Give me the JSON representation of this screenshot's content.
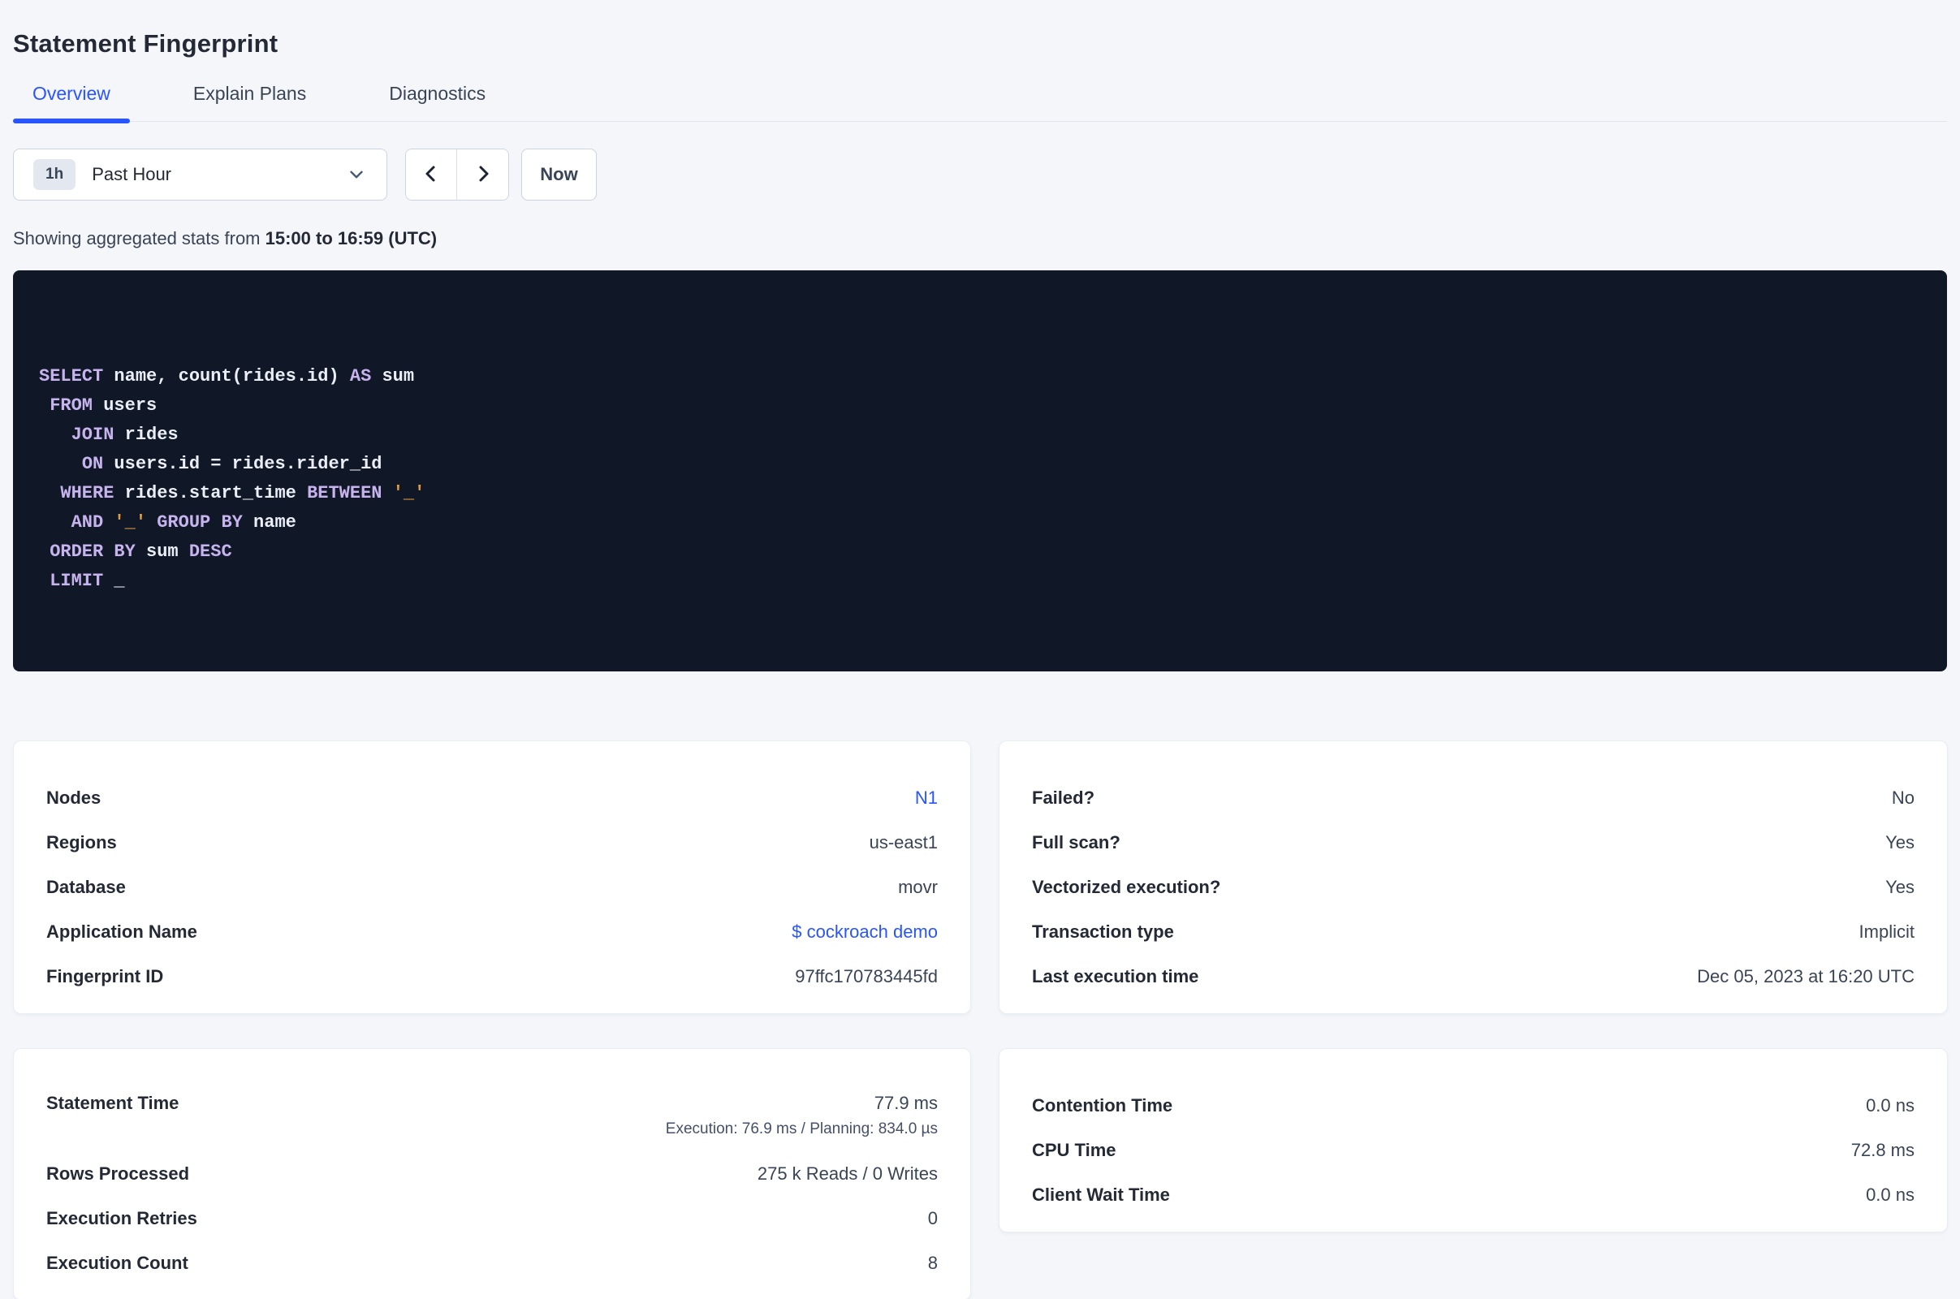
{
  "page": {
    "title": "Statement Fingerprint"
  },
  "tabs": [
    {
      "label": "Overview",
      "active": true
    },
    {
      "label": "Explain Plans",
      "active": false
    },
    {
      "label": "Diagnostics",
      "active": false
    }
  ],
  "time_picker": {
    "badge": "1h",
    "label": "Past Hour"
  },
  "now_button": {
    "label": "Now"
  },
  "aggregation_note": {
    "prefix": "Showing aggregated stats from ",
    "range": "15:00 to 16:59 (UTC)"
  },
  "sql": {
    "lines": [
      [
        [
          "k",
          "SELECT"
        ],
        [
          "i",
          " name, count(rides.id) "
        ],
        [
          "k",
          "AS"
        ],
        [
          "i",
          " sum"
        ]
      ],
      [
        [
          "i",
          " "
        ],
        [
          "k",
          "FROM"
        ],
        [
          "i",
          " users"
        ]
      ],
      [
        [
          "i",
          "   "
        ],
        [
          "k",
          "JOIN"
        ],
        [
          "i",
          " rides"
        ]
      ],
      [
        [
          "i",
          "    "
        ],
        [
          "k",
          "ON"
        ],
        [
          "i",
          " users.id = rides.rider_id"
        ]
      ],
      [
        [
          "i",
          "  "
        ],
        [
          "k",
          "WHERE"
        ],
        [
          "i",
          " rides.start_time "
        ],
        [
          "k",
          "BETWEEN"
        ],
        [
          "i",
          " "
        ],
        [
          "s",
          "'_'"
        ]
      ],
      [
        [
          "i",
          "   "
        ],
        [
          "k",
          "AND"
        ],
        [
          "i",
          " "
        ],
        [
          "s",
          "'_'"
        ],
        [
          "i",
          " "
        ],
        [
          "k",
          "GROUP BY"
        ],
        [
          "i",
          " name"
        ]
      ],
      [
        [
          "i",
          " "
        ],
        [
          "k",
          "ORDER BY"
        ],
        [
          "i",
          " sum "
        ],
        [
          "k",
          "DESC"
        ]
      ],
      [
        [
          "i",
          " "
        ],
        [
          "k",
          "LIMIT"
        ],
        [
          "i",
          " _"
        ]
      ]
    ]
  },
  "cards": {
    "details_left": {
      "rows": [
        {
          "label": "Nodes",
          "value": "N1"
        },
        {
          "label": "Regions",
          "value": "us-east1"
        },
        {
          "label": "Database",
          "value": "movr"
        },
        {
          "label": "Application Name",
          "value": "$ cockroach demo"
        },
        {
          "label": "Fingerprint ID",
          "value": "97ffc170783445fd"
        }
      ]
    },
    "details_right": {
      "rows": [
        {
          "label": "Failed?",
          "value": "No"
        },
        {
          "label": "Full scan?",
          "value": "Yes"
        },
        {
          "label": "Vectorized execution?",
          "value": "Yes"
        },
        {
          "label": "Transaction type",
          "value": "Implicit"
        },
        {
          "label": "Last execution time",
          "value": "Dec 05, 2023 at 16:20 UTC"
        }
      ]
    },
    "timing_left": {
      "rows": [
        {
          "label": "Statement Time",
          "value": "77.9 ms",
          "sub": "Execution: 76.9 ms / Planning: 834.0 µs"
        },
        {
          "label": "Rows Processed",
          "value": "275 k Reads / 0 Writes"
        },
        {
          "label": "Execution Retries",
          "value": "0"
        },
        {
          "label": "Execution Count",
          "value": "8"
        }
      ]
    },
    "timing_right": {
      "rows": [
        {
          "label": "Contention Time",
          "value": "0.0 ns"
        },
        {
          "label": "CPU Time",
          "value": "72.8 ms"
        },
        {
          "label": "Client Wait Time",
          "value": "0.0 ns"
        }
      ]
    }
  },
  "colors": {
    "accent_blue": "#2955ff",
    "page_bg": "#f4f6fa",
    "sql_bg": "#101828",
    "sql_keyword": "#c7b3ed",
    "sql_string": "#e09c3f",
    "text_dark": "#242a35",
    "text_body": "#394455"
  }
}
